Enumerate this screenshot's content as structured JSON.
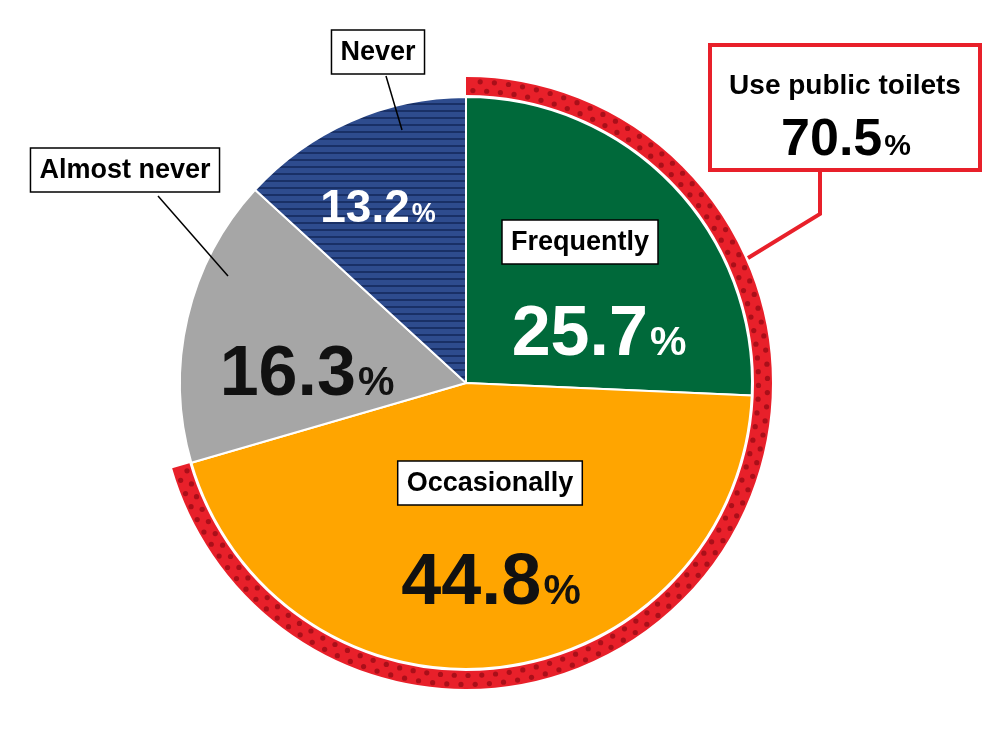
{
  "chart_data": {
    "type": "pie",
    "categories": [
      "Frequently",
      "Occasionally",
      "Almost never",
      "Never"
    ],
    "values": [
      25.7,
      44.8,
      16.3,
      13.2
    ],
    "value_labels": [
      "25.7%",
      "44.8%",
      "16.3%",
      "13.2%"
    ],
    "colors": [
      "#00693A",
      "#FFA500",
      "#A6A6A6",
      "#2E4C8E"
    ],
    "data_labels": true,
    "annotations": [
      {
        "text": "Use public toilets",
        "value": 70.5,
        "value_label": "70.5%",
        "covers": [
          "Frequently",
          "Occasionally"
        ],
        "color": "#E8202A"
      }
    ]
  }
}
